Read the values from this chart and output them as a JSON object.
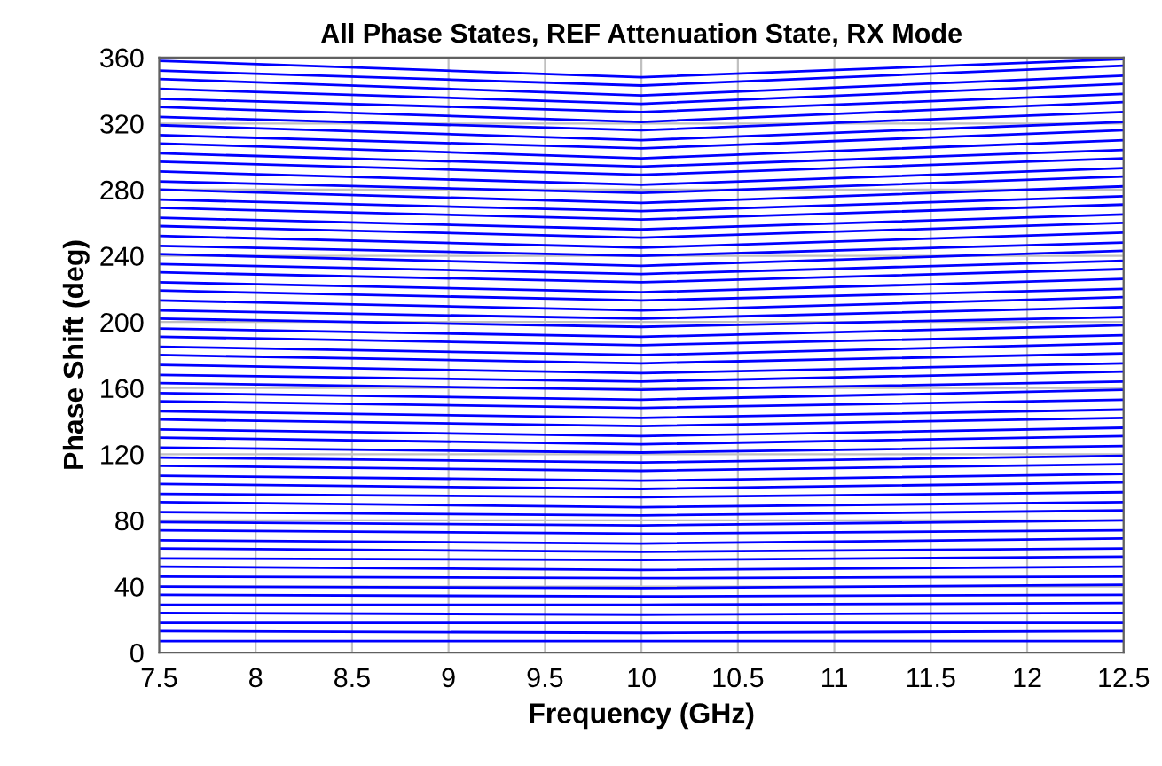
{
  "chart_data": {
    "type": "line",
    "title": "All Phase States, REF Attenuation State, RX Mode",
    "xlabel": "Frequency (GHz)",
    "ylabel": "Phase Shift (deg)",
    "x": [
      7.5,
      10,
      12.5
    ],
    "xlim": [
      7.5,
      12.5
    ],
    "xticks": [
      7.5,
      8,
      8.5,
      9,
      9.5,
      10,
      10.5,
      11,
      11.5,
      12,
      12.5
    ],
    "ylim": [
      0,
      360
    ],
    "yticks": [
      0,
      40,
      80,
      120,
      160,
      200,
      240,
      280,
      320,
      360
    ],
    "grid": true,
    "marker": "none",
    "line_style": "solid",
    "series": [
      {
        "color": "#0000ff",
        "values": [
          7,
          7,
          7
        ]
      },
      {
        "color": "#0000ff",
        "values": [
          13,
          12,
          13
        ]
      },
      {
        "color": "#0000ff",
        "values": [
          18,
          18,
          18
        ]
      },
      {
        "color": "#0000ff",
        "values": [
          24,
          23,
          24
        ]
      },
      {
        "color": "#0000ff",
        "values": [
          29,
          29,
          30
        ]
      },
      {
        "color": "#0000ff",
        "values": [
          35,
          34,
          35
        ]
      },
      {
        "color": "#0000ff",
        "values": [
          40,
          39,
          41
        ]
      },
      {
        "color": "#0000ff",
        "values": [
          46,
          45,
          46
        ]
      },
      {
        "color": "#0000ff",
        "values": [
          52,
          50,
          52
        ]
      },
      {
        "color": "#0000ff",
        "values": [
          57,
          56,
          58
        ]
      },
      {
        "color": "#0000ff",
        "values": [
          63,
          61,
          63
        ]
      },
      {
        "color": "#0000ff",
        "values": [
          68,
          66,
          69
        ]
      },
      {
        "color": "#0000ff",
        "values": [
          74,
          72,
          74
        ]
      },
      {
        "color": "#0000ff",
        "values": [
          79,
          77,
          80
        ]
      },
      {
        "color": "#0000ff",
        "values": [
          85,
          83,
          86
        ]
      },
      {
        "color": "#0000ff",
        "values": [
          91,
          88,
          91
        ]
      },
      {
        "color": "#0000ff",
        "values": [
          96,
          94,
          97
        ]
      },
      {
        "color": "#0000ff",
        "values": [
          102,
          99,
          103
        ]
      },
      {
        "color": "#0000ff",
        "values": [
          107,
          104,
          108
        ]
      },
      {
        "color": "#0000ff",
        "values": [
          113,
          110,
          114
        ]
      },
      {
        "color": "#0000ff",
        "values": [
          118,
          115,
          119
        ]
      },
      {
        "color": "#0000ff",
        "values": [
          124,
          121,
          125
        ]
      },
      {
        "color": "#0000ff",
        "values": [
          130,
          126,
          131
        ]
      },
      {
        "color": "#0000ff",
        "values": [
          135,
          131,
          136
        ]
      },
      {
        "color": "#0000ff",
        "values": [
          141,
          137,
          142
        ]
      },
      {
        "color": "#0000ff",
        "values": [
          146,
          142,
          147
        ]
      },
      {
        "color": "#0000ff",
        "values": [
          152,
          148,
          153
        ]
      },
      {
        "color": "#0000ff",
        "values": [
          157,
          153,
          159
        ]
      },
      {
        "color": "#0000ff",
        "values": [
          163,
          159,
          164
        ]
      },
      {
        "color": "#0000ff",
        "values": [
          168,
          164,
          170
        ]
      },
      {
        "color": "#0000ff",
        "values": [
          174,
          169,
          175
        ]
      },
      {
        "color": "#0000ff",
        "values": [
          180,
          175,
          181
        ]
      },
      {
        "color": "#0000ff",
        "values": [
          185,
          180,
          187
        ]
      },
      {
        "color": "#0000ff",
        "values": [
          191,
          186,
          192
        ]
      },
      {
        "color": "#0000ff",
        "values": [
          196,
          191,
          198
        ]
      },
      {
        "color": "#0000ff",
        "values": [
          202,
          197,
          203
        ]
      },
      {
        "color": "#0000ff",
        "values": [
          207,
          202,
          209
        ]
      },
      {
        "color": "#0000ff",
        "values": [
          213,
          207,
          215
        ]
      },
      {
        "color": "#0000ff",
        "values": [
          219,
          213,
          220
        ]
      },
      {
        "color": "#0000ff",
        "values": [
          224,
          218,
          226
        ]
      },
      {
        "color": "#0000ff",
        "values": [
          230,
          224,
          232
        ]
      },
      {
        "color": "#0000ff",
        "values": [
          235,
          229,
          237
        ]
      },
      {
        "color": "#0000ff",
        "values": [
          241,
          234,
          243
        ]
      },
      {
        "color": "#0000ff",
        "values": [
          246,
          240,
          248
        ]
      },
      {
        "color": "#0000ff",
        "values": [
          252,
          245,
          254
        ]
      },
      {
        "color": "#0000ff",
        "values": [
          258,
          251,
          260
        ]
      },
      {
        "color": "#0000ff",
        "values": [
          263,
          256,
          265
        ]
      },
      {
        "color": "#0000ff",
        "values": [
          269,
          262,
          271
        ]
      },
      {
        "color": "#0000ff",
        "values": [
          274,
          267,
          276
        ]
      },
      {
        "color": "#0000ff",
        "values": [
          280,
          272,
          282
        ]
      },
      {
        "color": "#0000ff",
        "values": [
          285,
          278,
          288
        ]
      },
      {
        "color": "#0000ff",
        "values": [
          291,
          283,
          293
        ]
      },
      {
        "color": "#0000ff",
        "values": [
          297,
          289,
          299
        ]
      },
      {
        "color": "#0000ff",
        "values": [
          302,
          294,
          304
        ]
      },
      {
        "color": "#0000ff",
        "values": [
          308,
          299,
          310
        ]
      },
      {
        "color": "#0000ff",
        "values": [
          313,
          305,
          316
        ]
      },
      {
        "color": "#0000ff",
        "values": [
          319,
          310,
          321
        ]
      },
      {
        "color": "#0000ff",
        "values": [
          324,
          316,
          327
        ]
      },
      {
        "color": "#0000ff",
        "values": [
          330,
          321,
          333
        ]
      },
      {
        "color": "#0000ff",
        "values": [
          335,
          327,
          338
        ]
      },
      {
        "color": "#0000ff",
        "values": [
          341,
          332,
          344
        ]
      },
      {
        "color": "#0000ff",
        "values": [
          347,
          337,
          349
        ]
      },
      {
        "color": "#0000ff",
        "values": [
          352,
          343,
          355
        ]
      },
      {
        "color": "#0000ff",
        "values": [
          358,
          348,
          359
        ]
      }
    ]
  }
}
